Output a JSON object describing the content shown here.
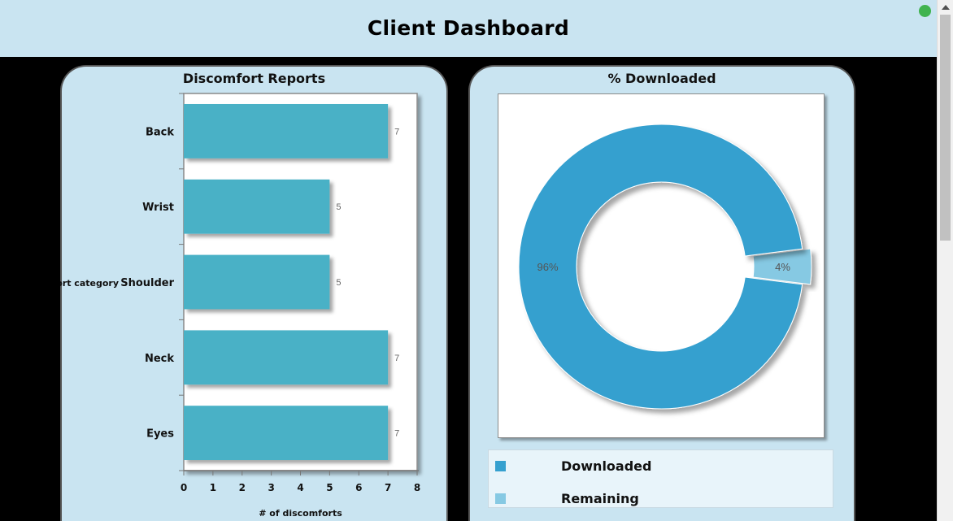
{
  "header": {
    "title": "Client Dashboard"
  },
  "colors": {
    "bar": "#4ab1c6",
    "downloaded": "#35a0cf",
    "remaining": "#86c9e3",
    "panel": "#c9e4f1"
  },
  "charts": {
    "discomfort": {
      "title": "Discomfort Reports"
    },
    "downloaded": {
      "title": "% Downloaded"
    }
  },
  "legend": {
    "items": [
      "Downloaded",
      "Remaining"
    ]
  },
  "chart_data": [
    {
      "type": "bar",
      "orientation": "horizontal",
      "title": "Discomfort Reports",
      "categories": [
        "Back",
        "Wrist",
        "Shoulder",
        "Neck",
        "Eyes"
      ],
      "values": [
        7,
        5,
        5,
        7,
        7
      ],
      "xlabel": "# of discomforts",
      "ylabel": "Discomfort category",
      "xlim": [
        0,
        8
      ],
      "xticks": [
        0,
        1,
        2,
        3,
        4,
        5,
        6,
        7,
        8
      ]
    },
    {
      "type": "pie",
      "style": "donut",
      "title": "% Downloaded",
      "labels": [
        "Downloaded",
        "Remaining"
      ],
      "values": [
        96,
        4
      ],
      "value_labels": [
        "96%",
        "4%"
      ],
      "legend_position": "bottom"
    }
  ]
}
